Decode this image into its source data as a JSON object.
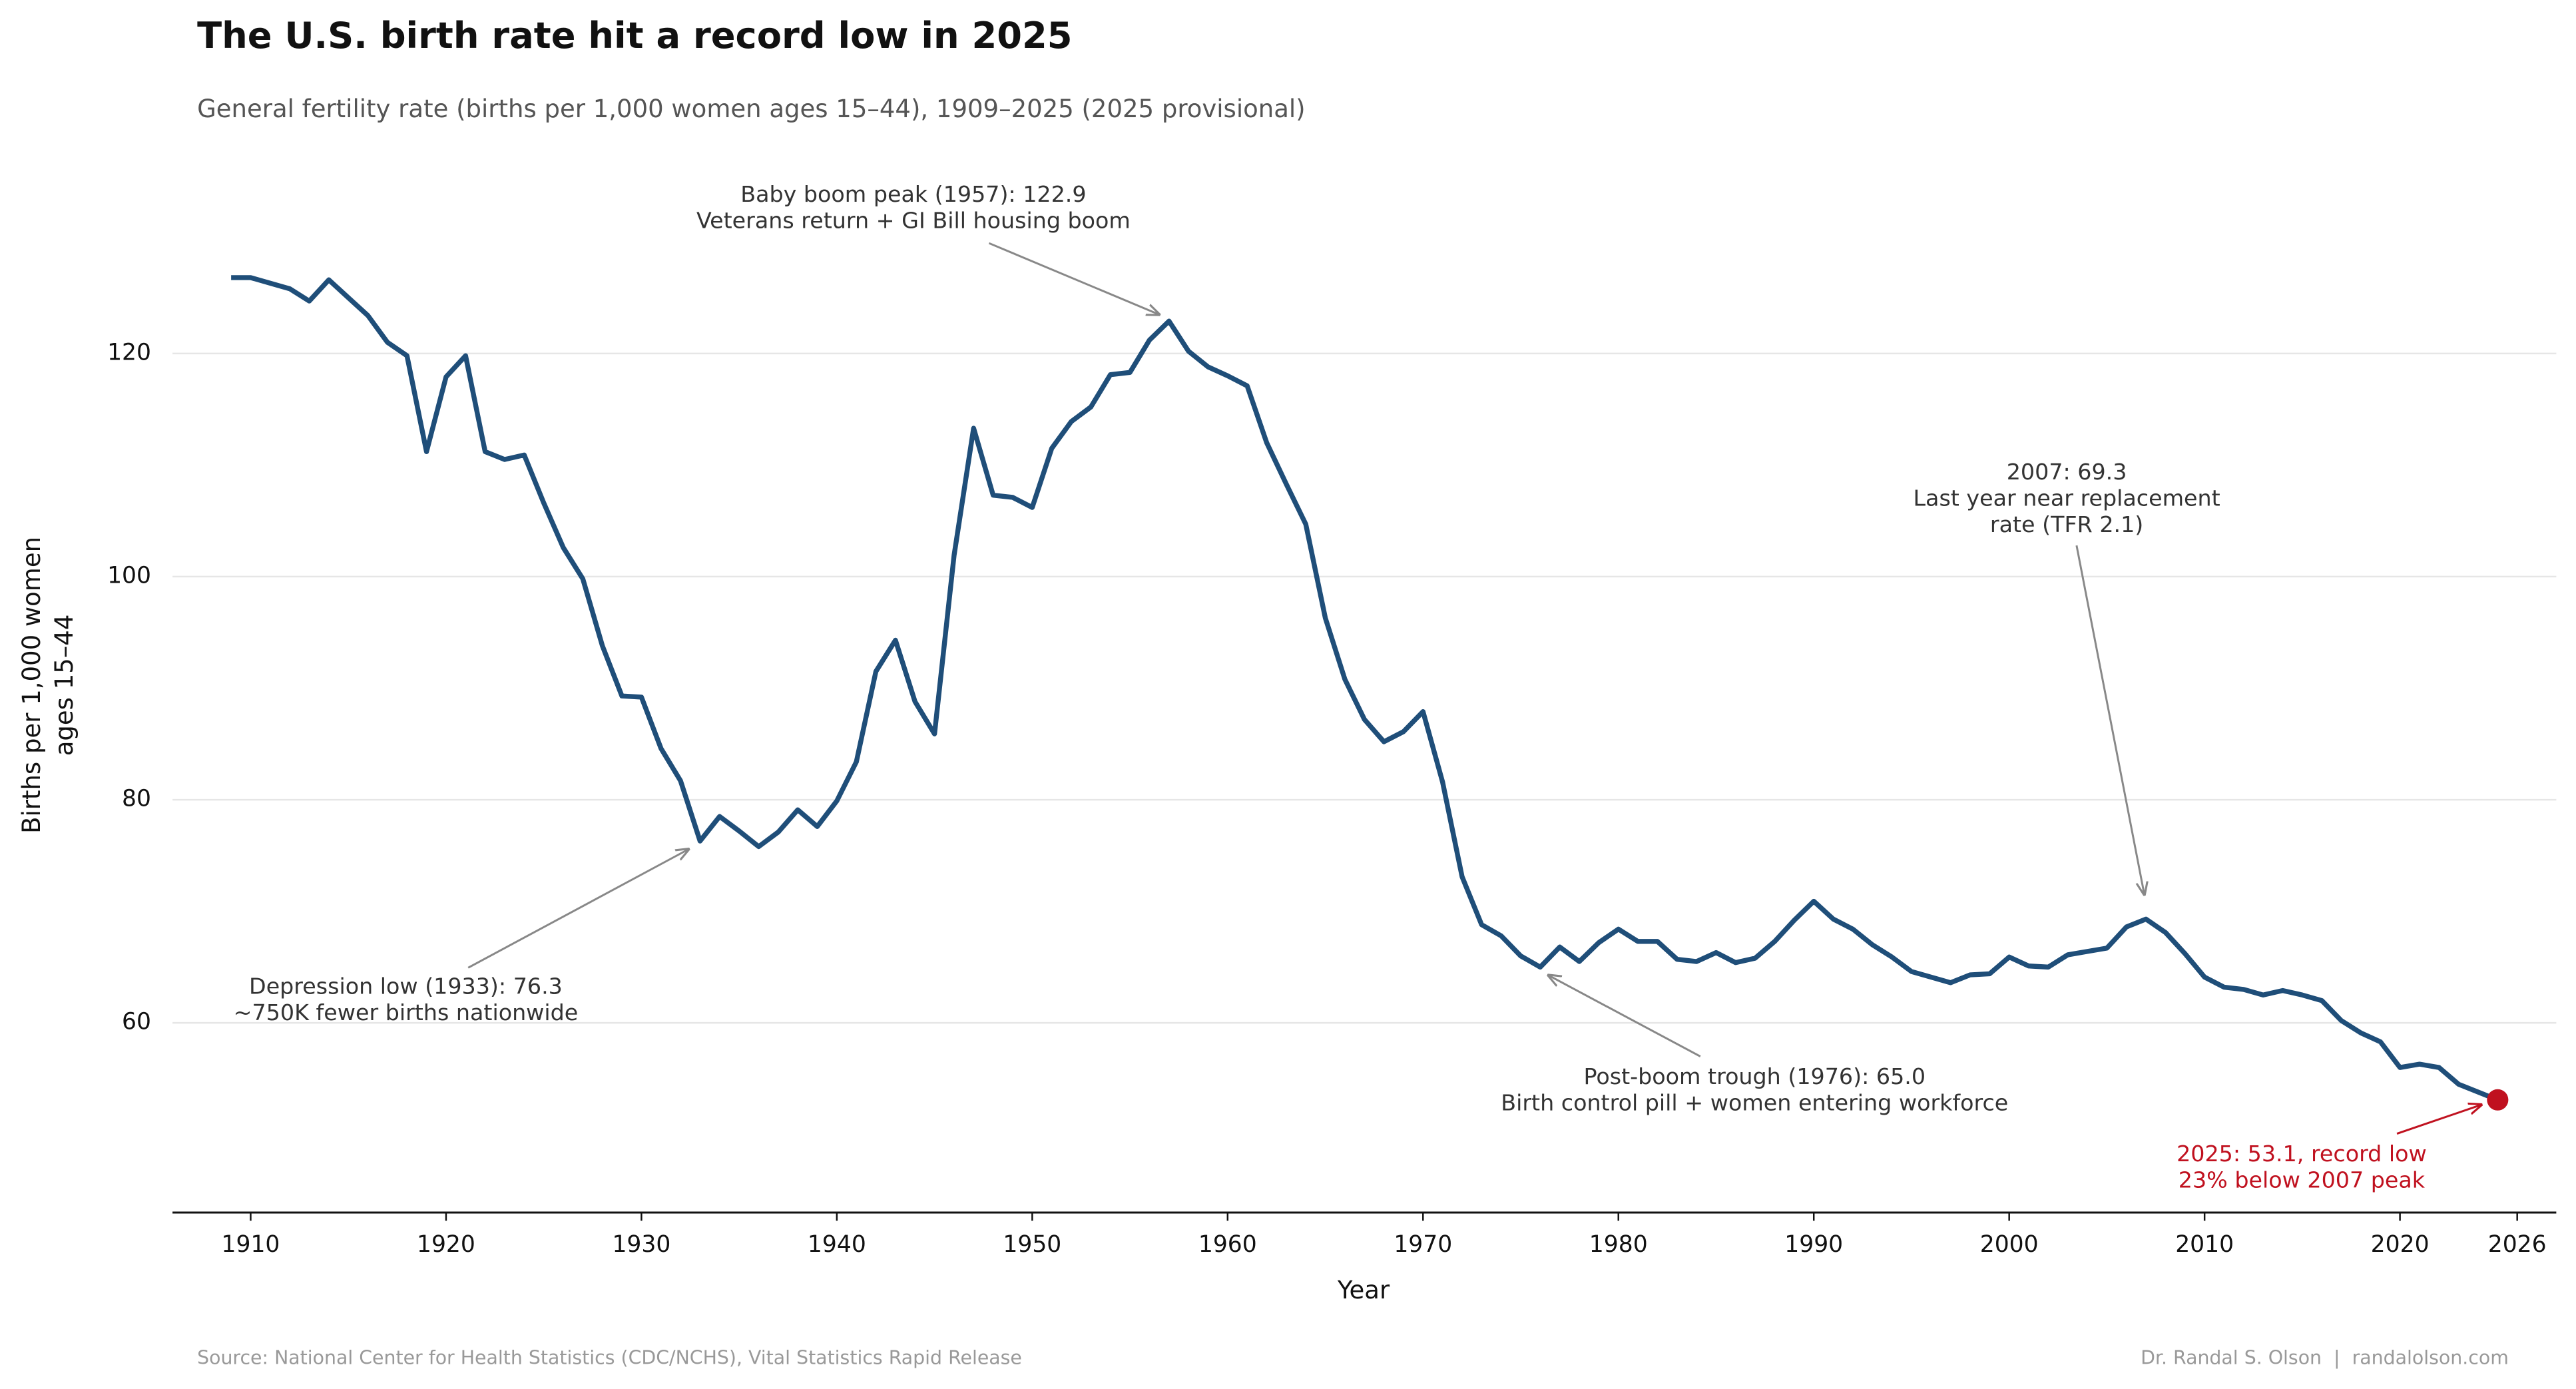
{
  "chart_data": {
    "type": "line",
    "title": "The U.S. birth rate hit a record low in 2025",
    "subtitle": "General fertility rate (births per 1,000 women ages 15–44), 1909–2025 (2025 provisional)",
    "xlabel": "Year",
    "ylabel": [
      "Births per 1,000 women",
      "ages 15–44"
    ],
    "x": [
      1909,
      1910,
      1911,
      1912,
      1913,
      1914,
      1915,
      1916,
      1917,
      1918,
      1919,
      1920,
      1921,
      1922,
      1923,
      1924,
      1925,
      1926,
      1927,
      1928,
      1929,
      1930,
      1931,
      1932,
      1933,
      1934,
      1935,
      1936,
      1937,
      1938,
      1939,
      1940,
      1941,
      1942,
      1943,
      1944,
      1945,
      1946,
      1947,
      1948,
      1949,
      1950,
      1951,
      1952,
      1953,
      1954,
      1955,
      1956,
      1957,
      1958,
      1959,
      1960,
      1961,
      1962,
      1963,
      1964,
      1965,
      1966,
      1967,
      1968,
      1969,
      1970,
      1971,
      1972,
      1973,
      1974,
      1975,
      1976,
      1977,
      1978,
      1979,
      1980,
      1981,
      1982,
      1983,
      1984,
      1985,
      1986,
      1987,
      1988,
      1989,
      1990,
      1991,
      1992,
      1993,
      1994,
      1995,
      1996,
      1997,
      1998,
      1999,
      2000,
      2001,
      2002,
      2003,
      2004,
      2005,
      2006,
      2007,
      2008,
      2009,
      2010,
      2011,
      2012,
      2013,
      2014,
      2015,
      2016,
      2017,
      2018,
      2019,
      2020,
      2021,
      2022,
      2023,
      2024,
      2025
    ],
    "values": [
      126.8,
      126.8,
      126.3,
      125.8,
      124.7,
      126.6,
      125.0,
      123.4,
      121.0,
      119.8,
      111.2,
      117.9,
      119.8,
      111.2,
      110.5,
      110.9,
      106.6,
      102.6,
      99.8,
      93.8,
      89.3,
      89.2,
      84.6,
      81.7,
      76.3,
      78.5,
      77.2,
      75.8,
      77.1,
      79.1,
      77.6,
      79.9,
      83.4,
      91.5,
      94.3,
      88.8,
      85.9,
      101.9,
      113.3,
      107.3,
      107.1,
      106.2,
      111.5,
      113.9,
      115.2,
      118.1,
      118.3,
      121.2,
      122.9,
      120.2,
      118.8,
      118.0,
      117.1,
      112.0,
      108.3,
      104.7,
      96.3,
      90.8,
      87.2,
      85.2,
      86.1,
      87.9,
      81.6,
      73.1,
      68.8,
      67.8,
      66.0,
      65.0,
      66.8,
      65.5,
      67.2,
      68.4,
      67.3,
      67.3,
      65.7,
      65.5,
      66.3,
      65.4,
      65.8,
      67.3,
      69.2,
      70.9,
      69.3,
      68.4,
      67.0,
      65.9,
      64.6,
      64.1,
      63.6,
      64.3,
      64.4,
      65.9,
      65.1,
      65.0,
      66.1,
      66.4,
      66.7,
      68.6,
      69.3,
      68.1,
      66.2,
      64.1,
      63.2,
      63.0,
      62.5,
      62.9,
      62.5,
      62.0,
      60.2,
      59.1,
      58.3,
      56.0,
      56.3,
      56.0,
      54.5,
      53.8,
      53.1
    ],
    "color": "#1f4e79",
    "highlight_color": "#c0111f",
    "xlim": [
      1906,
      2028
    ],
    "xticks": [
      1910,
      1920,
      1930,
      1940,
      1950,
      1960,
      1970,
      1980,
      1990,
      2000,
      2010,
      2020,
      2026
    ],
    "ylim": [
      43,
      137
    ],
    "yticks": [
      60,
      80,
      100,
      120
    ],
    "grid": true,
    "annotations": [
      {
        "lines": [
          "Baby boom peak (1957): 122.9",
          "Veterans return + GI Bill housing boom"
        ],
        "color": "#333333"
      },
      {
        "lines": [
          "2007: 69.3",
          "Last year near replacement",
          "rate (TFR 2.1)"
        ],
        "color": "#333333"
      },
      {
        "lines": [
          "Depression low (1933): 76.3",
          "~750K fewer births nationwide"
        ],
        "color": "#333333"
      },
      {
        "lines": [
          "Post-boom trough (1976): 65.0",
          "Birth control pill + women entering workforce"
        ],
        "color": "#333333"
      },
      {
        "lines": [
          "2025: 53.1, record low",
          "23% below 2007 peak"
        ],
        "color": "#c0111f"
      }
    ],
    "source": "Source: National Center for Health Statistics (CDC/NCHS), Vital Statistics Rapid Release",
    "credit": "Dr. Randal S. Olson  |  randalolson.com"
  }
}
